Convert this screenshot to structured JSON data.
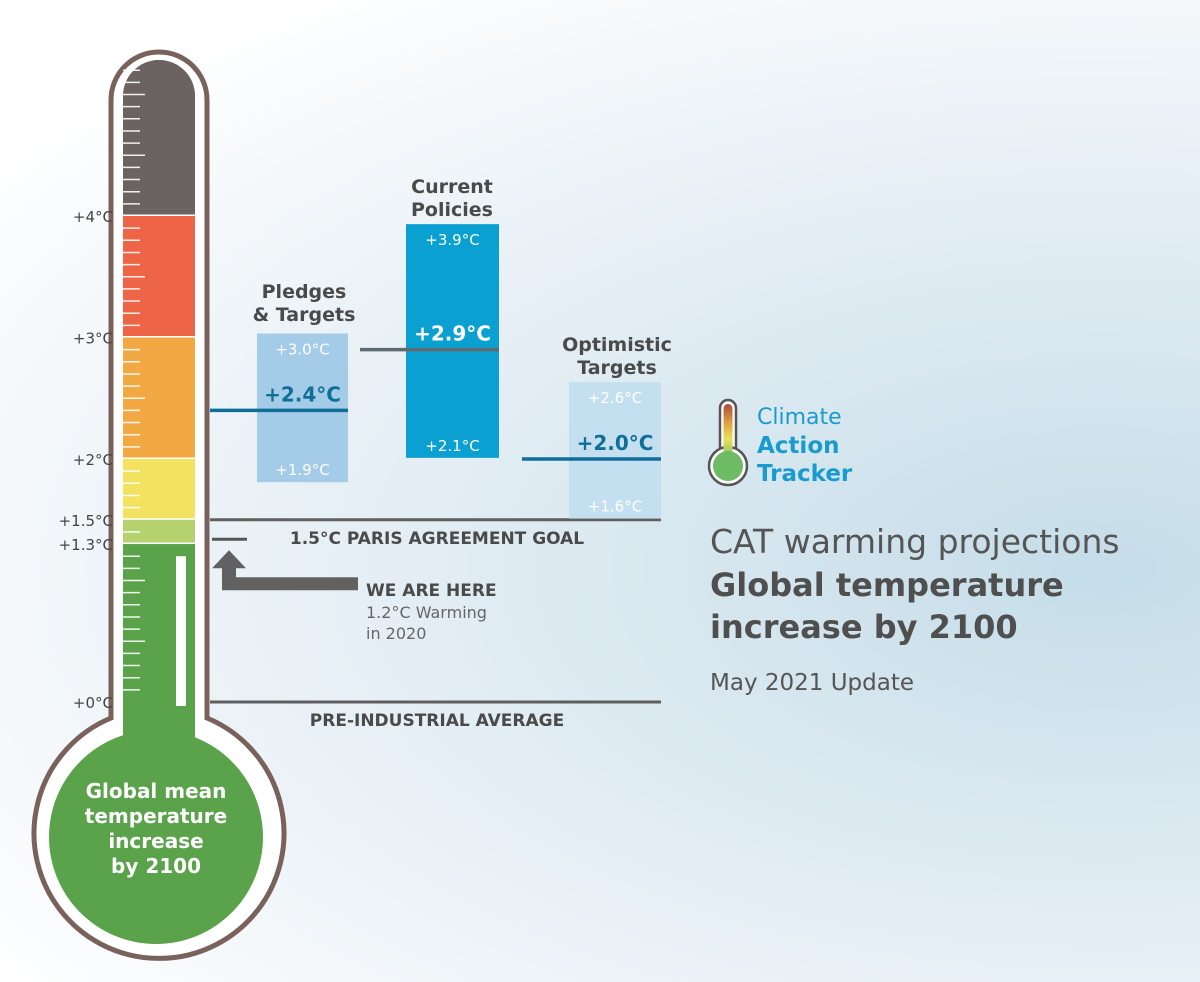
{
  "chart_data": {
    "type": "thermometer-range",
    "axis": {
      "unit": "°C",
      "ticks": [
        {
          "value": 4.0,
          "label": "+4°C"
        },
        {
          "value": 3.0,
          "label": "+3°C"
        },
        {
          "value": 2.0,
          "label": "+2°C"
        },
        {
          "value": 1.5,
          "label": "+1.5°C"
        },
        {
          "value": 1.3,
          "label": "+1.3°C"
        },
        {
          "value": 0.0,
          "label": "+0°C"
        }
      ],
      "range": [
        0,
        5.3
      ]
    },
    "bands": [
      {
        "from": 4.0,
        "to": 5.3,
        "color": "#6b6361"
      },
      {
        "from": 3.0,
        "to": 4.0,
        "color": "#ee6446"
      },
      {
        "from": 2.0,
        "to": 3.0,
        "color": "#f2a944"
      },
      {
        "from": 1.5,
        "to": 2.0,
        "color": "#f3e260"
      },
      {
        "from": 1.3,
        "to": 1.5,
        "color": "#b5d26f"
      },
      {
        "from": 0.0,
        "to": 1.3,
        "color": "#5aa34b"
      }
    ],
    "bulb_label": [
      "Global mean",
      "temperature",
      "increase",
      "by 2100"
    ],
    "scenarios": [
      {
        "name": [
          "Pledges",
          "& Targets"
        ],
        "low": 1.9,
        "central": 2.4,
        "high": 3.0,
        "low_label": "+1.9°C",
        "central_label": "+2.4°C",
        "high_label": "+3.0°C",
        "color": "#a4cbe8"
      },
      {
        "name": [
          "Current",
          "Policies"
        ],
        "low": 2.1,
        "central": 2.9,
        "high": 3.9,
        "low_label": "+2.1°C",
        "central_label": "+2.9°C",
        "high_label": "+3.9°C",
        "color": "#0aa0d2"
      },
      {
        "name": [
          "Optimistic",
          "Targets"
        ],
        "low": 1.6,
        "central": 2.0,
        "high": 2.6,
        "low_label": "+1.6°C",
        "central_label": "+2.0°C",
        "high_label": "+2.6°C",
        "color": "#c4dff0"
      }
    ],
    "reference_lines": [
      {
        "value": 1.5,
        "label": "1.5°C PARIS AGREEMENT GOAL"
      },
      {
        "value": 0.0,
        "label": "PRE-INDUSTRIAL AVERAGE"
      }
    ],
    "current": {
      "value": 1.2,
      "title": "WE ARE HERE",
      "lines": [
        "1.2°C Warming",
        "in 2020"
      ]
    }
  },
  "brand": {
    "line1": "Climate",
    "line2": "Action",
    "line3": "Tracker"
  },
  "subtitle": {
    "line1": "CAT warming projections",
    "line2": "Global temperature",
    "line3": "increase by 2100",
    "update": "May 2021 Update"
  },
  "colors": {
    "text_dark": "#4a4a4a",
    "central_line_dark": "#0f6f98",
    "central_line_grey": "#5f6b73",
    "outline": "#7a625c"
  }
}
